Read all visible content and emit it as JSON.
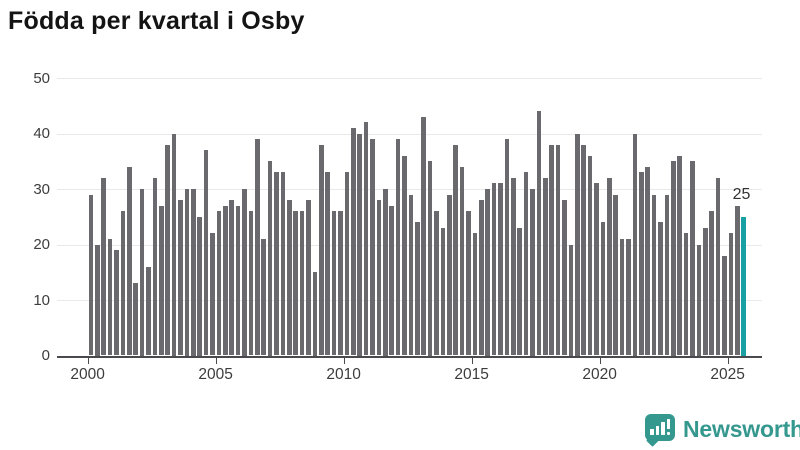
{
  "title": "Födda per kvartal i Osby",
  "annotation": {
    "last_value_label": "25"
  },
  "branding": {
    "name": "Newsworthy",
    "color": "#35988f"
  },
  "colors": {
    "bar": "#6a6a6e",
    "highlight": "#18a0a3",
    "grid": "#e9e9e9",
    "axis": "#4a4a4e",
    "tick_text": "#3d3d3d",
    "title_text": "#141414"
  },
  "chart_data": {
    "type": "bar",
    "title": "Födda per kvartal i Osby",
    "x_unit": "quarter",
    "x_start": "2000Q1",
    "x_end": "2025Q3",
    "x_tick_labels": [
      "2000",
      "2005",
      "2010",
      "2015",
      "2020",
      "2025"
    ],
    "x_tick_quarter_offsets": [
      0,
      20,
      40,
      60,
      80,
      100
    ],
    "y_ticks": [
      0,
      10,
      20,
      30,
      40,
      50
    ],
    "ylim": [
      0,
      50
    ],
    "grid": true,
    "legend": "none",
    "bar_color": "#6a6a6e",
    "highlight_last_bar": true,
    "highlight_color": "#18a0a3",
    "last_value_label": "25",
    "values": [
      29,
      20,
      32,
      21,
      19,
      26,
      34,
      13,
      30,
      16,
      32,
      27,
      38,
      40,
      28,
      30,
      30,
      25,
      37,
      22,
      26,
      27,
      28,
      27,
      30,
      26,
      39,
      21,
      35,
      33,
      33,
      28,
      26,
      26,
      28,
      15,
      38,
      33,
      26,
      26,
      33,
      41,
      40,
      42,
      39,
      28,
      30,
      27,
      39,
      36,
      29,
      24,
      43,
      35,
      26,
      23,
      29,
      38,
      34,
      26,
      22,
      28,
      30,
      31,
      31,
      39,
      32,
      23,
      33,
      30,
      44,
      32,
      38,
      38,
      28,
      20,
      40,
      38,
      36,
      31,
      24,
      32,
      29,
      21,
      21,
      40,
      33,
      34,
      29,
      24,
      29,
      35,
      36,
      22,
      35,
      20,
      23,
      26,
      32,
      18,
      22,
      27,
      25
    ]
  }
}
